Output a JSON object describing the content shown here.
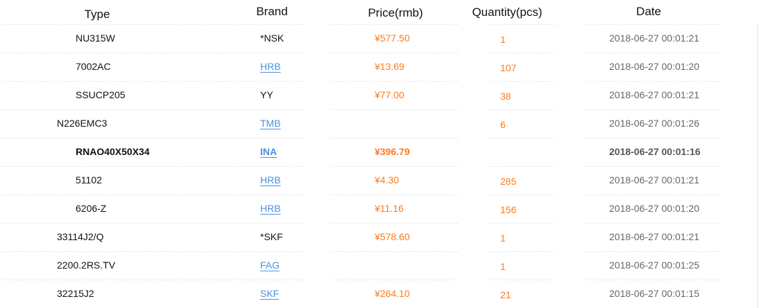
{
  "headers": {
    "type": "Type",
    "brand": "Brand",
    "price": "Price(rmb)",
    "quantity": "Quantity(pcs)",
    "date": "Date"
  },
  "colors": {
    "price": "#ff7a1a",
    "link": "#4a90e2",
    "date": "#666666"
  },
  "rows": [
    {
      "type": "NU315W",
      "indent": true,
      "brand": "*NSK",
      "brand_link": false,
      "price": "¥577.50",
      "quantity": "1",
      "date": "2018-06-27 00:01:21",
      "bold": false
    },
    {
      "type": "7002AC",
      "indent": true,
      "brand": "HRB",
      "brand_link": true,
      "price": "¥13.69",
      "quantity": "107",
      "date": "2018-06-27 00:01:20",
      "bold": false
    },
    {
      "type": "SSUCP205",
      "indent": true,
      "brand": "YY",
      "brand_link": false,
      "price": "¥77.00",
      "quantity": "38",
      "date": "2018-06-27 00:01:21",
      "bold": false
    },
    {
      "type": "N226EMC3",
      "indent": false,
      "brand": "TMB",
      "brand_link": true,
      "price": "",
      "quantity": "6",
      "date": "2018-06-27 00:01:26",
      "bold": false
    },
    {
      "type": "RNAO40X50X34",
      "indent": true,
      "brand": "INA",
      "brand_link": true,
      "price": "¥396.79",
      "quantity": "",
      "date": "2018-06-27 00:01:16",
      "bold": true
    },
    {
      "type": "51102",
      "indent": true,
      "brand": "HRB",
      "brand_link": true,
      "price": "¥4.30",
      "quantity": "285",
      "date": "2018-06-27 00:01:21",
      "bold": false
    },
    {
      "type": "6206-Z",
      "indent": true,
      "brand": "HRB",
      "brand_link": true,
      "price": "¥11.16",
      "quantity": "156",
      "date": "2018-06-27 00:01:20",
      "bold": false
    },
    {
      "type": "33114J2/Q",
      "indent": false,
      "brand": "*SKF",
      "brand_link": false,
      "price": "¥578.60",
      "quantity": "1",
      "date": "2018-06-27 00:01:21",
      "bold": false
    },
    {
      "type": "2200.2RS.TV",
      "indent": false,
      "brand": "FAG",
      "brand_link": true,
      "price": "",
      "quantity": "1",
      "date": "2018-06-27 00:01:25",
      "bold": false
    },
    {
      "type": "32215J2",
      "indent": false,
      "brand": "SKF",
      "brand_link": true,
      "price": "¥264.10",
      "quantity": "21",
      "date": "2018-06-27 00:01:15",
      "bold": false
    }
  ]
}
